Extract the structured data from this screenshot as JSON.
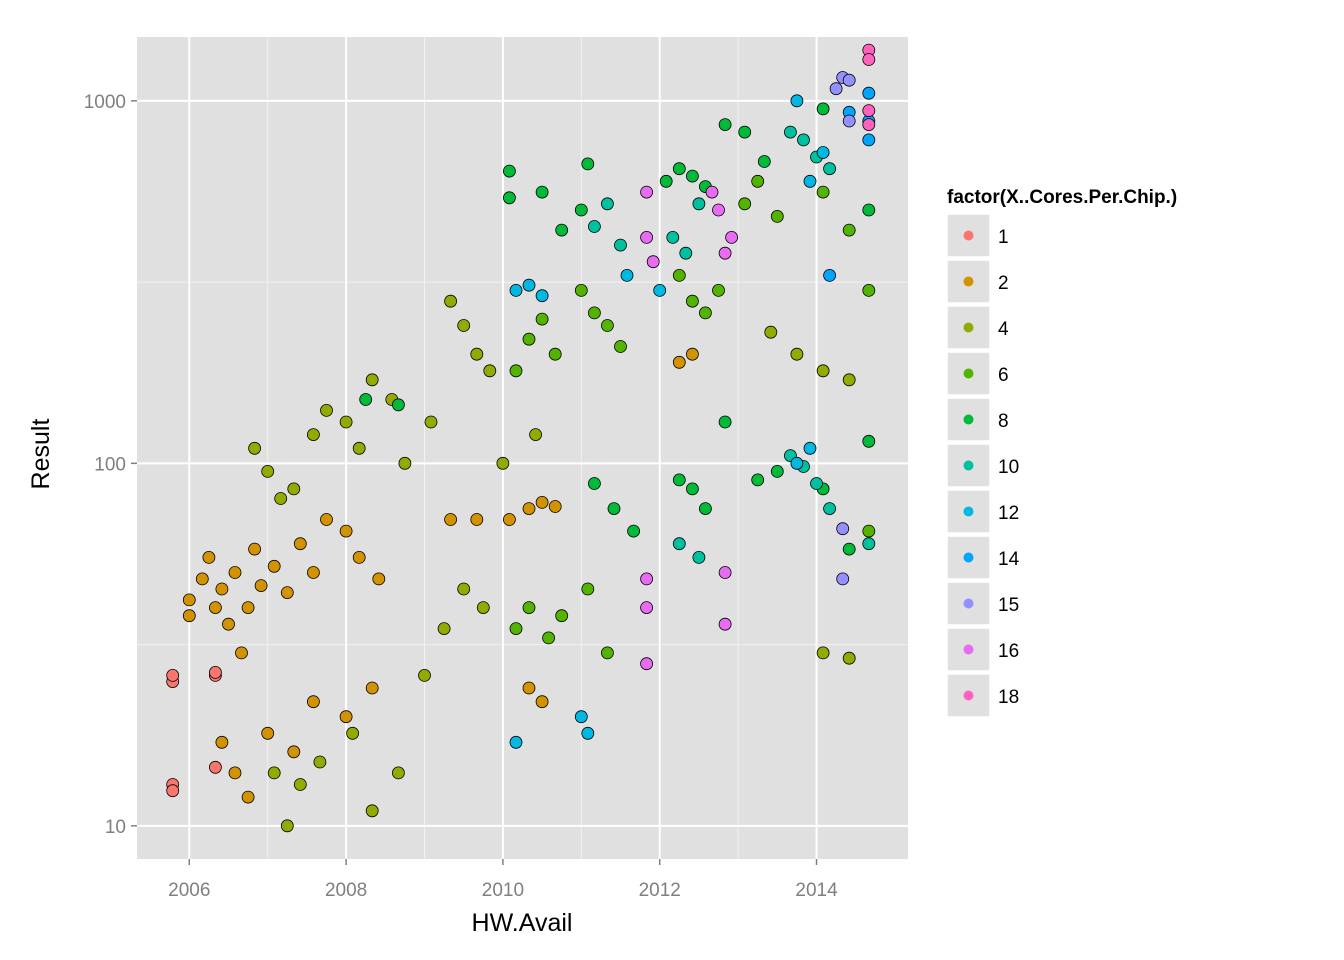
{
  "chart_data": {
    "type": "scatter",
    "title": "",
    "xlabel": "HW.Avail",
    "ylabel": "Result",
    "x_scale": "date",
    "y_scale": "log10",
    "xlim": [
      "2005-05-01",
      "2015-03-01"
    ],
    "ylim": [
      8.1,
      1500
    ],
    "x_ticks": [
      "2006",
      "2008",
      "2010",
      "2012",
      "2014"
    ],
    "y_ticks": [
      "10",
      "100",
      "1000"
    ],
    "grid": true,
    "background": "#e0e0e0",
    "legend": {
      "title": "factor(X..Cores.Per.Chip.)",
      "position": "right",
      "entries": [
        {
          "label": "1",
          "color": "#f8766d"
        },
        {
          "label": "2",
          "color": "#d39200"
        },
        {
          "label": "4",
          "color": "#93aa00"
        },
        {
          "label": "6",
          "color": "#53b400"
        },
        {
          "label": "8",
          "color": "#00ba38"
        },
        {
          "label": "10",
          "color": "#00c19f"
        },
        {
          "label": "12",
          "color": "#00b9e3"
        },
        {
          "label": "14",
          "color": "#00a5ff"
        },
        {
          "label": "15",
          "color": "#9590ff"
        },
        {
          "label": "16",
          "color": "#e76bf3"
        },
        {
          "label": "18",
          "color": "#ff62bc"
        }
      ]
    },
    "series": [
      {
        "name": "1",
        "color": "#f8766d",
        "points": [
          {
            "x": "2005-10-15",
            "y": 13
          },
          {
            "x": "2005-10-15",
            "y": 12.5
          },
          {
            "x": "2005-10-15",
            "y": 25
          },
          {
            "x": "2005-10-15",
            "y": 26
          },
          {
            "x": "2006-05-01",
            "y": 14.5
          },
          {
            "x": "2006-05-01",
            "y": 26
          },
          {
            "x": "2006-05-01",
            "y": 26.5
          }
        ]
      },
      {
        "name": "2",
        "color": "#d39200",
        "points": [
          {
            "x": "2006-01-01",
            "y": 38
          },
          {
            "x": "2006-01-01",
            "y": 42
          },
          {
            "x": "2006-03-01",
            "y": 48
          },
          {
            "x": "2006-04-01",
            "y": 55
          },
          {
            "x": "2006-05-01",
            "y": 40
          },
          {
            "x": "2006-06-01",
            "y": 45
          },
          {
            "x": "2006-07-01",
            "y": 36
          },
          {
            "x": "2006-08-01",
            "y": 50
          },
          {
            "x": "2006-09-01",
            "y": 30
          },
          {
            "x": "2006-10-01",
            "y": 40
          },
          {
            "x": "2006-11-01",
            "y": 58
          },
          {
            "x": "2006-12-01",
            "y": 46
          },
          {
            "x": "2007-02-01",
            "y": 52
          },
          {
            "x": "2007-04-01",
            "y": 44
          },
          {
            "x": "2007-06-01",
            "y": 60
          },
          {
            "x": "2007-08-01",
            "y": 50
          },
          {
            "x": "2007-10-01",
            "y": 70
          },
          {
            "x": "2008-01-01",
            "y": 65
          },
          {
            "x": "2008-03-01",
            "y": 55
          },
          {
            "x": "2008-06-01",
            "y": 48
          },
          {
            "x": "2006-06-01",
            "y": 17
          },
          {
            "x": "2006-08-01",
            "y": 14
          },
          {
            "x": "2006-10-01",
            "y": 12
          },
          {
            "x": "2007-01-01",
            "y": 18
          },
          {
            "x": "2007-05-01",
            "y": 16
          },
          {
            "x": "2007-08-01",
            "y": 22
          },
          {
            "x": "2008-01-01",
            "y": 20
          },
          {
            "x": "2008-05-01",
            "y": 24
          },
          {
            "x": "2009-05-01",
            "y": 70
          },
          {
            "x": "2009-09-01",
            "y": 70
          },
          {
            "x": "2010-02-01",
            "y": 70
          },
          {
            "x": "2010-05-01",
            "y": 75
          },
          {
            "x": "2010-07-01",
            "y": 78
          },
          {
            "x": "2010-09-01",
            "y": 76
          },
          {
            "x": "2010-05-01",
            "y": 24
          },
          {
            "x": "2010-07-01",
            "y": 22
          },
          {
            "x": "2012-04-01",
            "y": 190
          },
          {
            "x": "2012-06-01",
            "y": 200
          }
        ]
      },
      {
        "name": "4",
        "color": "#93aa00",
        "points": [
          {
            "x": "2006-11-01",
            "y": 110
          },
          {
            "x": "2007-01-01",
            "y": 95
          },
          {
            "x": "2007-03-01",
            "y": 80
          },
          {
            "x": "2007-05-01",
            "y": 85
          },
          {
            "x": "2007-08-01",
            "y": 120
          },
          {
            "x": "2007-10-01",
            "y": 140
          },
          {
            "x": "2008-01-01",
            "y": 130
          },
          {
            "x": "2008-03-01",
            "y": 110
          },
          {
            "x": "2008-05-01",
            "y": 170
          },
          {
            "x": "2008-08-01",
            "y": 150
          },
          {
            "x": "2008-10-01",
            "y": 100
          },
          {
            "x": "2009-02-01",
            "y": 130
          },
          {
            "x": "2009-05-01",
            "y": 280
          },
          {
            "x": "2009-07-01",
            "y": 240
          },
          {
            "x": "2009-09-01",
            "y": 200
          },
          {
            "x": "2009-11-01",
            "y": 180
          },
          {
            "x": "2007-02-01",
            "y": 14
          },
          {
            "x": "2007-04-01",
            "y": 10
          },
          {
            "x": "2007-06-01",
            "y": 13
          },
          {
            "x": "2007-09-01",
            "y": 15
          },
          {
            "x": "2008-02-01",
            "y": 18
          },
          {
            "x": "2008-05-01",
            "y": 11
          },
          {
            "x": "2008-09-01",
            "y": 14
          },
          {
            "x": "2009-01-01",
            "y": 26
          },
          {
            "x": "2009-04-01",
            "y": 35
          },
          {
            "x": "2009-07-01",
            "y": 45
          },
          {
            "x": "2009-10-01",
            "y": 40
          },
          {
            "x": "2010-01-01",
            "y": 100
          },
          {
            "x": "2010-06-01",
            "y": 120
          },
          {
            "x": "2013-06-01",
            "y": 230
          },
          {
            "x": "2013-10-01",
            "y": 200
          },
          {
            "x": "2014-02-01",
            "y": 180
          },
          {
            "x": "2014-06-01",
            "y": 170
          },
          {
            "x": "2014-02-01",
            "y": 30
          },
          {
            "x": "2014-06-01",
            "y": 29
          }
        ]
      },
      {
        "name": "6",
        "color": "#53b400",
        "points": [
          {
            "x": "2010-03-01",
            "y": 180
          },
          {
            "x": "2010-05-01",
            "y": 220
          },
          {
            "x": "2010-07-01",
            "y": 250
          },
          {
            "x": "2010-09-01",
            "y": 200
          },
          {
            "x": "2011-01-01",
            "y": 300
          },
          {
            "x": "2011-03-01",
            "y": 260
          },
          {
            "x": "2011-05-01",
            "y": 240
          },
          {
            "x": "2011-07-01",
            "y": 210
          },
          {
            "x": "2010-03-01",
            "y": 35
          },
          {
            "x": "2010-05-01",
            "y": 40
          },
          {
            "x": "2010-08-01",
            "y": 33
          },
          {
            "x": "2010-10-01",
            "y": 38
          },
          {
            "x": "2011-02-01",
            "y": 45
          },
          {
            "x": "2011-05-01",
            "y": 30
          },
          {
            "x": "2012-04-01",
            "y": 330
          },
          {
            "x": "2012-06-01",
            "y": 280
          },
          {
            "x": "2012-08-01",
            "y": 260
          },
          {
            "x": "2012-10-01",
            "y": 300
          },
          {
            "x": "2013-02-01",
            "y": 520
          },
          {
            "x": "2013-04-01",
            "y": 600
          },
          {
            "x": "2013-07-01",
            "y": 480
          },
          {
            "x": "2014-02-01",
            "y": 560
          },
          {
            "x": "2014-06-01",
            "y": 440
          },
          {
            "x": "2014-09-01",
            "y": 300
          },
          {
            "x": "2014-09-01",
            "y": 65
          }
        ]
      },
      {
        "name": "8",
        "color": "#00ba38",
        "points": [
          {
            "x": "2008-04-01",
            "y": 150
          },
          {
            "x": "2008-09-01",
            "y": 145
          },
          {
            "x": "2010-02-01",
            "y": 640
          },
          {
            "x": "2010-02-01",
            "y": 540
          },
          {
            "x": "2010-07-01",
            "y": 560
          },
          {
            "x": "2010-10-01",
            "y": 440
          },
          {
            "x": "2011-01-01",
            "y": 500
          },
          {
            "x": "2011-02-01",
            "y": 670
          },
          {
            "x": "2012-02-01",
            "y": 600
          },
          {
            "x": "2012-04-01",
            "y": 650
          },
          {
            "x": "2012-06-01",
            "y": 620
          },
          {
            "x": "2012-08-01",
            "y": 580
          },
          {
            "x": "2012-11-01",
            "y": 860
          },
          {
            "x": "2013-02-01",
            "y": 820
          },
          {
            "x": "2013-05-01",
            "y": 680
          },
          {
            "x": "2014-02-01",
            "y": 950
          },
          {
            "x": "2014-09-01",
            "y": 500
          },
          {
            "x": "2012-04-01",
            "y": 90
          },
          {
            "x": "2012-06-01",
            "y": 85
          },
          {
            "x": "2012-08-01",
            "y": 75
          },
          {
            "x": "2013-04-01",
            "y": 90
          },
          {
            "x": "2013-07-01",
            "y": 95
          },
          {
            "x": "2014-02-01",
            "y": 85
          },
          {
            "x": "2014-06-01",
            "y": 58
          },
          {
            "x": "2011-03-01",
            "y": 88
          },
          {
            "x": "2011-06-01",
            "y": 75
          },
          {
            "x": "2011-09-01",
            "y": 65
          },
          {
            "x": "2012-11-01",
            "y": 130
          },
          {
            "x": "2014-09-01",
            "y": 115
          }
        ]
      },
      {
        "name": "10",
        "color": "#00c19f",
        "points": [
          {
            "x": "2011-03-01",
            "y": 450
          },
          {
            "x": "2011-05-01",
            "y": 520
          },
          {
            "x": "2011-07-01",
            "y": 400
          },
          {
            "x": "2012-03-01",
            "y": 420
          },
          {
            "x": "2012-05-01",
            "y": 380
          },
          {
            "x": "2012-07-01",
            "y": 520
          },
          {
            "x": "2013-09-01",
            "y": 820
          },
          {
            "x": "2013-11-01",
            "y": 780
          },
          {
            "x": "2014-01-01",
            "y": 700
          },
          {
            "x": "2014-03-01",
            "y": 650
          },
          {
            "x": "2013-09-01",
            "y": 105
          },
          {
            "x": "2013-11-01",
            "y": 98
          },
          {
            "x": "2014-01-01",
            "y": 88
          },
          {
            "x": "2014-03-01",
            "y": 75
          },
          {
            "x": "2012-04-01",
            "y": 60
          },
          {
            "x": "2012-07-01",
            "y": 55
          },
          {
            "x": "2014-09-01",
            "y": 60
          }
        ]
      },
      {
        "name": "12",
        "color": "#00b9e3",
        "points": [
          {
            "x": "2010-03-01",
            "y": 300
          },
          {
            "x": "2010-05-01",
            "y": 310
          },
          {
            "x": "2010-07-01",
            "y": 290
          },
          {
            "x": "2010-03-01",
            "y": 17
          },
          {
            "x": "2011-01-01",
            "y": 20
          },
          {
            "x": "2011-02-01",
            "y": 18
          },
          {
            "x": "2011-08-01",
            "y": 330
          },
          {
            "x": "2012-01-01",
            "y": 300
          },
          {
            "x": "2013-10-01",
            "y": 1000
          },
          {
            "x": "2013-12-01",
            "y": 600
          },
          {
            "x": "2014-02-01",
            "y": 720
          },
          {
            "x": "2013-10-01",
            "y": 100
          },
          {
            "x": "2013-12-01",
            "y": 110
          }
        ]
      },
      {
        "name": "14",
        "color": "#00a5ff",
        "points": [
          {
            "x": "2014-03-01",
            "y": 330
          },
          {
            "x": "2014-06-01",
            "y": 930
          },
          {
            "x": "2014-09-01",
            "y": 1050
          },
          {
            "x": "2014-09-01",
            "y": 780
          },
          {
            "x": "2014-09-01",
            "y": 880
          }
        ]
      },
      {
        "name": "15",
        "color": "#9590ff",
        "points": [
          {
            "x": "2014-04-01",
            "y": 1080
          },
          {
            "x": "2014-05-01",
            "y": 1160
          },
          {
            "x": "2014-06-01",
            "y": 1140
          },
          {
            "x": "2014-06-01",
            "y": 880
          },
          {
            "x": "2014-05-01",
            "y": 66
          },
          {
            "x": "2014-05-01",
            "y": 48
          }
        ]
      },
      {
        "name": "16",
        "color": "#e76bf3",
        "points": [
          {
            "x": "2011-11-01",
            "y": 560
          },
          {
            "x": "2011-11-01",
            "y": 420
          },
          {
            "x": "2011-12-01",
            "y": 360
          },
          {
            "x": "2012-09-01",
            "y": 560
          },
          {
            "x": "2012-10-01",
            "y": 500
          },
          {
            "x": "2012-11-01",
            "y": 380
          },
          {
            "x": "2012-12-01",
            "y": 420
          },
          {
            "x": "2011-11-01",
            "y": 48
          },
          {
            "x": "2011-11-01",
            "y": 40
          },
          {
            "x": "2012-11-01",
            "y": 50
          },
          {
            "x": "2012-11-01",
            "y": 36
          },
          {
            "x": "2011-11-01",
            "y": 28
          }
        ]
      },
      {
        "name": "18",
        "color": "#ff62bc",
        "points": [
          {
            "x": "2014-09-01",
            "y": 1380
          },
          {
            "x": "2014-09-01",
            "y": 1300
          },
          {
            "x": "2014-09-01",
            "y": 940
          },
          {
            "x": "2014-09-01",
            "y": 860
          }
        ]
      }
    ]
  }
}
